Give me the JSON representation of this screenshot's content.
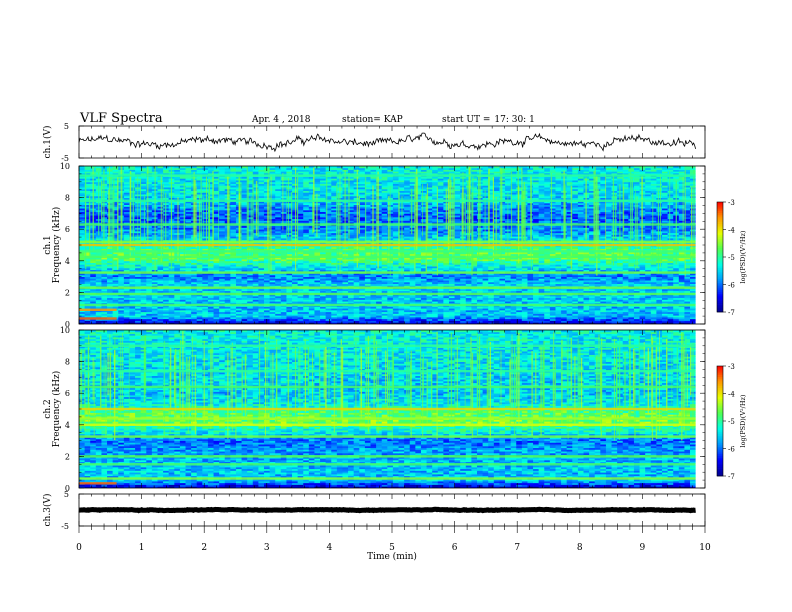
{
  "header": {
    "title": "VLF Spectra",
    "date": "Apr. 4 , 2018",
    "station": "station= KAP",
    "start_label": "start UT =",
    "start_value": "17: 30: 1"
  },
  "chart_data": [
    {
      "type": "line",
      "panel": "ch1-waveform",
      "ylabel": "ch.1(V)",
      "ylim": [
        -5,
        5
      ],
      "yticks": [
        "5",
        "-5"
      ],
      "x_range_min": [
        0,
        9.85
      ],
      "baseline_v": 0.0,
      "amplitude_v": 1.8,
      "grid": false
    },
    {
      "type": "heatmap",
      "panel": "ch1-spectrogram",
      "ylabel": "ch.1\nFrequency (kHz)",
      "ylim": [
        0,
        10
      ],
      "yticks": [
        "0",
        "2",
        "4",
        "6",
        "8",
        "10"
      ],
      "x_range_min": [
        0,
        9.85
      ],
      "colorbar": {
        "label": "log(PSD)(V²/Hz)",
        "range": [
          -7,
          -3
        ],
        "ticks": [
          "-3",
          "-4",
          "-5",
          "-6",
          "-7"
        ]
      },
      "bands_khz": [
        {
          "f": 0.35,
          "level": -3.4,
          "until_min": 0.6
        },
        {
          "f": 0.9,
          "level": -3.6,
          "until_min": 0.6
        },
        {
          "f": 1.2,
          "level": -4.8
        },
        {
          "f": 1.9,
          "level": -4.7
        },
        {
          "f": 2.3,
          "level": -4.6
        },
        {
          "f": 3.25,
          "level": -4.6
        },
        {
          "f": 4.25,
          "level": -4.8
        },
        {
          "f": 4.6,
          "level": -4.9
        },
        {
          "f": 5.0,
          "level": -3.8
        },
        {
          "f": 5.2,
          "level": -4.5
        },
        {
          "f": 6.3,
          "level": -4.8
        },
        {
          "f": 7.8,
          "level": -5.0
        },
        {
          "f": 9.4,
          "level": -5.0
        }
      ],
      "profile": [
        {
          "f": 0,
          "level": -6.8
        },
        {
          "f": 0.5,
          "level": -5.6
        },
        {
          "f": 1.5,
          "level": -5.6
        },
        {
          "f": 2.5,
          "level": -5.5
        },
        {
          "f": 3.0,
          "level": -5.9
        },
        {
          "f": 3.6,
          "level": -5.4
        },
        {
          "f": 4.2,
          "level": -4.7
        },
        {
          "f": 4.8,
          "level": -4.9
        },
        {
          "f": 5.4,
          "level": -5.5
        },
        {
          "f": 6.0,
          "level": -5.9
        },
        {
          "f": 6.8,
          "level": -6.1
        },
        {
          "f": 8.0,
          "level": -5.5
        },
        {
          "f": 10,
          "level": -5.3
        }
      ]
    },
    {
      "type": "heatmap",
      "panel": "ch2-spectrogram",
      "ylabel": "ch.2\nFrequency (kHz)",
      "ylim": [
        0,
        10
      ],
      "yticks": [
        "0",
        "2",
        "4",
        "6",
        "8",
        "10"
      ],
      "x_range_min": [
        0,
        9.85
      ],
      "colorbar": {
        "label": "log(PSD)(V²/Hz)",
        "range": [
          -7,
          -3
        ],
        "ticks": [
          "-3",
          "-4",
          "-5",
          "-6",
          "-7"
        ]
      },
      "bands_khz": [
        {
          "f": 0.3,
          "level": -3.4,
          "until_min": 0.6
        },
        {
          "f": 0.6,
          "level": -4.5
        },
        {
          "f": 1.5,
          "level": -4.8
        },
        {
          "f": 2.0,
          "level": -4.7
        },
        {
          "f": 3.25,
          "level": -4.6
        },
        {
          "f": 4.0,
          "level": -4.2
        },
        {
          "f": 4.4,
          "level": -4.4
        },
        {
          "f": 5.0,
          "level": -3.9
        },
        {
          "f": 6.4,
          "level": -4.8
        },
        {
          "f": 7.4,
          "level": -5.0
        },
        {
          "f": 9.0,
          "level": -5.0
        }
      ],
      "profile": [
        {
          "f": 0,
          "level": -6.8
        },
        {
          "f": 0.5,
          "level": -5.6
        },
        {
          "f": 1.5,
          "level": -5.6
        },
        {
          "f": 2.5,
          "level": -5.8
        },
        {
          "f": 3.0,
          "level": -6.0
        },
        {
          "f": 3.6,
          "level": -5.3
        },
        {
          "f": 4.2,
          "level": -4.6
        },
        {
          "f": 4.8,
          "level": -4.8
        },
        {
          "f": 5.4,
          "level": -5.4
        },
        {
          "f": 6.0,
          "level": -5.6
        },
        {
          "f": 7.0,
          "level": -5.5
        },
        {
          "f": 8.5,
          "level": -5.4
        },
        {
          "f": 10,
          "level": -5.3
        }
      ]
    },
    {
      "type": "line",
      "panel": "ch3-waveform",
      "ylabel": "ch.3(V)",
      "ylim": [
        -5,
        5
      ],
      "yticks": [
        "5",
        "-5"
      ],
      "x_range_min": [
        0,
        9.85
      ],
      "baseline_v": 0.0,
      "amplitude_v": 0.15,
      "grid": false
    }
  ],
  "xaxis": {
    "label": "Time (min)",
    "range": [
      0,
      10
    ],
    "ticks": [
      "0",
      "1",
      "2",
      "3",
      "4",
      "5",
      "6",
      "7",
      "8",
      "9",
      "10"
    ]
  },
  "colors": {
    "colormap": [
      "#00008c",
      "#0000ff",
      "#0096ff",
      "#00ffe6",
      "#50ff50",
      "#e6ff00",
      "#ff9600",
      "#ff0000"
    ],
    "axis": "#000000",
    "trace": "#000000"
  }
}
